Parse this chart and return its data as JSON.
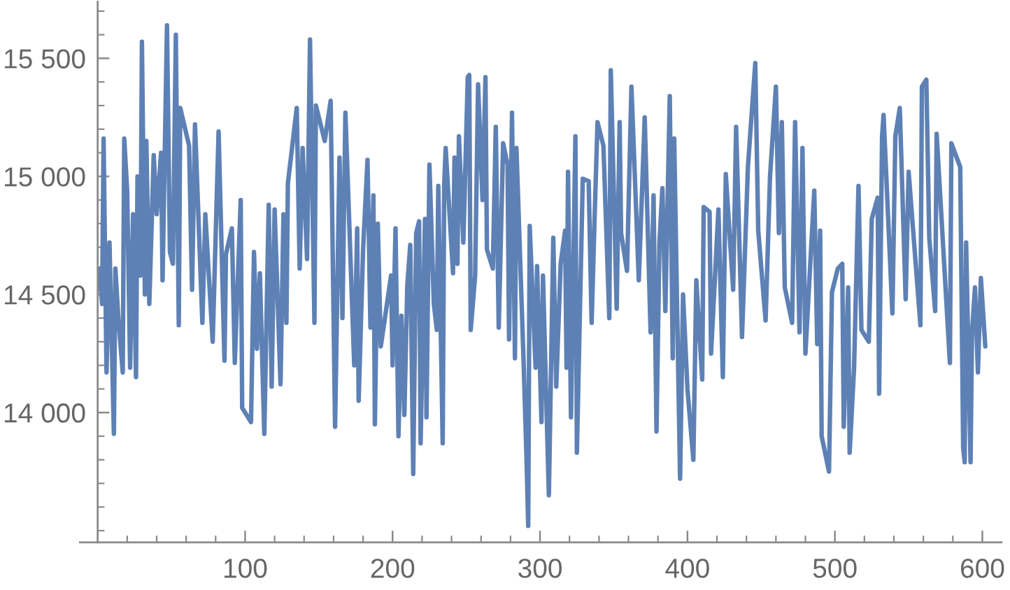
{
  "chart_data": {
    "type": "line",
    "x": [
      1,
      3,
      4,
      6,
      8,
      11,
      12,
      14,
      17,
      18,
      20,
      22,
      24,
      26,
      27,
      29,
      30,
      32,
      33,
      35,
      38,
      40,
      43,
      44,
      47,
      49,
      51,
      53,
      55,
      56,
      62,
      64,
      66,
      71,
      73,
      78,
      82,
      86,
      87,
      91,
      93,
      97,
      98,
      104,
      106,
      108,
      110,
      113,
      116,
      118,
      120,
      124,
      126,
      128,
      129,
      135,
      137,
      139,
      142,
      144,
      147,
      148,
      154,
      158,
      161,
      164,
      166,
      168,
      174,
      176,
      177,
      180,
      183,
      185,
      187,
      188,
      190,
      192,
      199,
      200,
      202,
      204,
      206,
      208,
      210,
      212,
      214,
      216,
      218,
      219,
      222,
      223,
      225,
      228,
      230,
      231,
      234,
      235,
      236,
      241,
      242,
      244,
      245,
      248,
      251,
      252,
      253,
      256,
      258,
      261,
      263,
      264,
      268,
      270,
      272,
      275,
      278,
      279,
      281,
      283,
      284,
      289,
      291,
      292,
      293,
      297,
      298,
      301,
      302,
      306,
      309,
      311,
      314,
      317,
      318,
      319,
      321,
      324,
      325,
      329,
      333,
      335,
      337,
      339,
      343,
      347,
      348,
      352,
      354,
      355,
      359,
      362,
      367,
      371,
      375,
      377,
      379,
      381,
      383,
      385,
      388,
      390,
      391,
      395,
      397,
      400,
      404,
      406,
      410,
      411,
      415,
      416,
      421,
      424,
      426,
      431,
      433,
      437,
      441,
      446,
      448,
      453,
      456,
      460,
      462,
      464,
      466,
      471,
      473,
      476,
      478,
      480,
      486,
      488,
      490,
      491,
      496,
      498,
      502,
      505,
      506,
      509,
      510,
      513,
      516,
      518,
      523,
      525,
      529,
      530,
      532,
      533,
      539,
      541,
      544,
      548,
      550,
      558,
      559,
      562,
      564,
      568,
      569,
      578,
      579,
      585,
      587,
      588,
      589,
      592,
      593,
      595,
      597,
      599,
      602
    ],
    "series": [
      {
        "color": "#5e81b5",
        "values": [
          14610,
          14460,
          15160,
          14170,
          14720,
          13910,
          14610,
          14400,
          14170,
          15160,
          14940,
          14190,
          14840,
          14150,
          15000,
          14580,
          15570,
          14500,
          15150,
          14460,
          15090,
          14840,
          15100,
          14560,
          15640,
          14680,
          14630,
          15600,
          14370,
          15290,
          15130,
          14520,
          15220,
          14380,
          14840,
          14300,
          15190,
          14220,
          14670,
          14780,
          14210,
          14900,
          14020,
          13960,
          14680,
          14270,
          14590,
          13910,
          14880,
          14110,
          14860,
          14120,
          14840,
          14380,
          14970,
          15290,
          14610,
          15120,
          14650,
          15580,
          14380,
          15300,
          15150,
          15320,
          13940,
          15080,
          14400,
          15270,
          14200,
          14780,
          14050,
          14690,
          15070,
          14360,
          14920,
          13950,
          14800,
          14280,
          14580,
          14200,
          14780,
          13900,
          14410,
          13990,
          14540,
          14710,
          13740,
          14760,
          14810,
          13870,
          14820,
          13980,
          15050,
          14460,
          14350,
          14960,
          13870,
          14960,
          15120,
          14590,
          15080,
          14630,
          15170,
          14720,
          15420,
          15430,
          14350,
          14580,
          15390,
          14900,
          15420,
          14690,
          14610,
          15210,
          14360,
          15140,
          15050,
          14310,
          15270,
          14230,
          15120,
          14190,
          13770,
          13520,
          14790,
          14190,
          14620,
          13960,
          14580,
          13650,
          14740,
          14110,
          14630,
          14770,
          14190,
          15020,
          13980,
          15170,
          13830,
          14990,
          14980,
          14380,
          14820,
          15230,
          15130,
          14400,
          15450,
          14440,
          15230,
          14760,
          14600,
          15380,
          14560,
          15250,
          14340,
          14920,
          13920,
          14720,
          14950,
          14430,
          15340,
          14230,
          15160,
          13720,
          14500,
          14100,
          13800,
          14560,
          14140,
          14870,
          14850,
          14250,
          14860,
          14150,
          15010,
          14520,
          15210,
          14320,
          15040,
          15480,
          14770,
          14390,
          15000,
          15380,
          14760,
          15230,
          14530,
          14380,
          15230,
          14340,
          15120,
          14250,
          14940,
          14290,
          14770,
          13900,
          13750,
          14510,
          14610,
          14630,
          13940,
          14530,
          13830,
          14190,
          14960,
          14350,
          14300,
          14820,
          14910,
          14080,
          15170,
          15260,
          14420,
          15170,
          15290,
          14480,
          15020,
          14370,
          15380,
          15410,
          14740,
          14430,
          15180,
          14210,
          15140,
          15040,
          13850,
          13790,
          14720,
          13790,
          14340,
          14530,
          14170,
          14570,
          14280
        ]
      }
    ],
    "xlim": [
      -12,
      613
    ],
    "ylim": [
      13450,
      15740
    ],
    "xticks": [
      {
        "value": 20,
        "label": null
      },
      {
        "value": 40,
        "label": null
      },
      {
        "value": 60,
        "label": null
      },
      {
        "value": 80,
        "label": null
      },
      100,
      {
        "value": 120,
        "label": null
      },
      {
        "value": 140,
        "label": null
      },
      {
        "value": 160,
        "label": null
      },
      {
        "value": 180,
        "label": null
      },
      200,
      {
        "value": 220,
        "label": null
      },
      {
        "value": 240,
        "label": null
      },
      {
        "value": 260,
        "label": null
      },
      {
        "value": 280,
        "label": null
      },
      300,
      {
        "value": 320,
        "label": null
      },
      {
        "value": 340,
        "label": null
      },
      {
        "value": 360,
        "label": null
      },
      {
        "value": 380,
        "label": null
      },
      400,
      {
        "value": 420,
        "label": null
      },
      {
        "value": 440,
        "label": null
      },
      {
        "value": 460,
        "label": null
      },
      {
        "value": 480,
        "label": null
      },
      500,
      {
        "value": 520,
        "label": null
      },
      {
        "value": 540,
        "label": null
      },
      {
        "value": 560,
        "label": null
      },
      {
        "value": 580,
        "label": null
      },
      600
    ],
    "yticks": [
      {
        "value": 13500,
        "label": null
      },
      {
        "value": 13600,
        "label": null
      },
      {
        "value": 13700,
        "label": null
      },
      {
        "value": 13800,
        "label": null
      },
      {
        "value": 13900,
        "label": null
      },
      {
        "value": 14000,
        "label": "14 000"
      },
      {
        "value": 14100,
        "label": null
      },
      {
        "value": 14200,
        "label": null
      },
      {
        "value": 14300,
        "label": null
      },
      {
        "value": 14400,
        "label": null
      },
      {
        "value": 14500,
        "label": "14 500"
      },
      {
        "value": 14600,
        "label": null
      },
      {
        "value": 14700,
        "label": null
      },
      {
        "value": 14800,
        "label": null
      },
      {
        "value": 14900,
        "label": null
      },
      {
        "value": 15000,
        "label": "15 000"
      },
      {
        "value": 15100,
        "label": null
      },
      {
        "value": 15200,
        "label": null
      },
      {
        "value": 15300,
        "label": null
      },
      {
        "value": 15400,
        "label": null
      },
      {
        "value": 15500,
        "label": "15 500"
      },
      {
        "value": 15600,
        "label": null
      },
      {
        "value": 15700,
        "label": null
      }
    ],
    "line_style": "solid"
  }
}
